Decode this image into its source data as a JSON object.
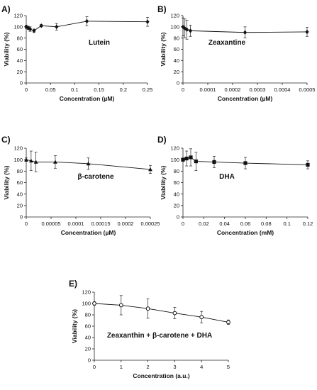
{
  "chart_data": [
    {
      "panel": "A)",
      "type": "line",
      "annotation": "Lutein",
      "xlabel": "Concentration (µM)",
      "ylabel": "Viability (%)",
      "xlim": [
        0,
        0.25
      ],
      "ylim": [
        0,
        120
      ],
      "xticks": [
        0,
        0.05,
        0.1,
        0.15,
        0.2,
        0.25
      ],
      "xtick_labels": [
        "0",
        "0.05",
        "0.1",
        "0.15",
        "0.2",
        "0.25"
      ],
      "yticks": [
        0,
        20,
        40,
        60,
        80,
        100,
        120
      ],
      "marker": "diamond",
      "x": [
        0,
        0.004,
        0.008,
        0.016,
        0.031,
        0.0625,
        0.125,
        0.25
      ],
      "y": [
        100,
        98,
        96,
        93,
        102,
        100,
        110,
        109
      ],
      "err": [
        3,
        3,
        4,
        3,
        2,
        6,
        8,
        8
      ]
    },
    {
      "panel": "B)",
      "type": "line",
      "annotation": "Zeaxantine",
      "xlabel": "Concentration (µM)",
      "ylabel": "Viability (%)",
      "xlim": [
        0,
        0.0005
      ],
      "ylim": [
        0,
        120
      ],
      "xticks": [
        0,
        0.0001,
        0.0002,
        0.0003,
        0.0004,
        0.0005
      ],
      "xtick_labels": [
        "0",
        "0.0001",
        "0.0002",
        "0.0003",
        "0.0004",
        "0.0005"
      ],
      "yticks": [
        0,
        20,
        40,
        60,
        80,
        100,
        120
      ],
      "marker": "diamond",
      "x": [
        0,
        7.8e-06,
        1.6e-05,
        3e-05,
        0.00025,
        0.0005
      ],
      "y": [
        100,
        97,
        95,
        93,
        90,
        91
      ],
      "err": [
        16,
        17,
        17,
        10,
        10,
        8
      ]
    },
    {
      "panel": "C)",
      "type": "line",
      "annotation": "β-carotene",
      "xlabel": "Concentration (µM)",
      "ylabel": "Viability (%)",
      "xlim": [
        0,
        0.00025
      ],
      "ylim": [
        0,
        120
      ],
      "xticks": [
        0,
        5e-05,
        0.0001,
        0.00015,
        0.0002,
        0.00025
      ],
      "xtick_labels": [
        "0",
        "0.00005",
        "0.0001",
        "0.00015",
        "0.0002",
        "0.00025"
      ],
      "yticks": [
        0,
        20,
        40,
        60,
        80,
        100,
        120
      ],
      "marker": "triangle",
      "x": [
        0,
        9.8e-06,
        1.95e-05,
        5.85e-05,
        0.000125,
        0.00025
      ],
      "y": [
        100,
        98,
        96,
        96,
        93,
        83
      ],
      "err": [
        3,
        17,
        17,
        11,
        10,
        7
      ]
    },
    {
      "panel": "D)",
      "type": "line",
      "annotation": "DHA",
      "xlabel": "Concentration (mM)",
      "ylabel": "Viability (%)",
      "xlim": [
        0,
        0.12
      ],
      "ylim": [
        0,
        120
      ],
      "xticks": [
        0,
        0.02,
        0.04,
        0.06,
        0.08,
        0.1,
        0.12
      ],
      "xtick_labels": [
        "0",
        "0.02",
        "0.04",
        "0.06",
        "0.08",
        "0.1",
        "0.12"
      ],
      "yticks": [
        0,
        20,
        40,
        60,
        80,
        100,
        120
      ],
      "marker": "square",
      "x": [
        0,
        0.0035,
        0.0075,
        0.0125,
        0.03,
        0.06,
        0.12
      ],
      "y": [
        100,
        102,
        104,
        97,
        96,
        94,
        91
      ],
      "err": [
        3,
        13,
        15,
        16,
        10,
        10,
        7
      ]
    },
    {
      "panel": "E)",
      "type": "line",
      "annotation": "Zeaxanthin + β-carotene + DHA",
      "xlabel": "Concentration (a.u.)",
      "ylabel": "Viability (%)",
      "xlim": [
        0,
        5
      ],
      "ylim": [
        0,
        120
      ],
      "xticks": [
        0,
        1,
        2,
        3,
        4,
        5
      ],
      "xtick_labels": [
        "0",
        "1",
        "2",
        "3",
        "4",
        "5"
      ],
      "yticks": [
        0,
        20,
        40,
        60,
        80,
        100,
        120
      ],
      "marker": "circle",
      "x": [
        0,
        1,
        2,
        3,
        4,
        5
      ],
      "y": [
        100,
        97,
        91,
        83,
        76,
        67
      ],
      "err": [
        3,
        17,
        17,
        10,
        10,
        4
      ]
    }
  ]
}
